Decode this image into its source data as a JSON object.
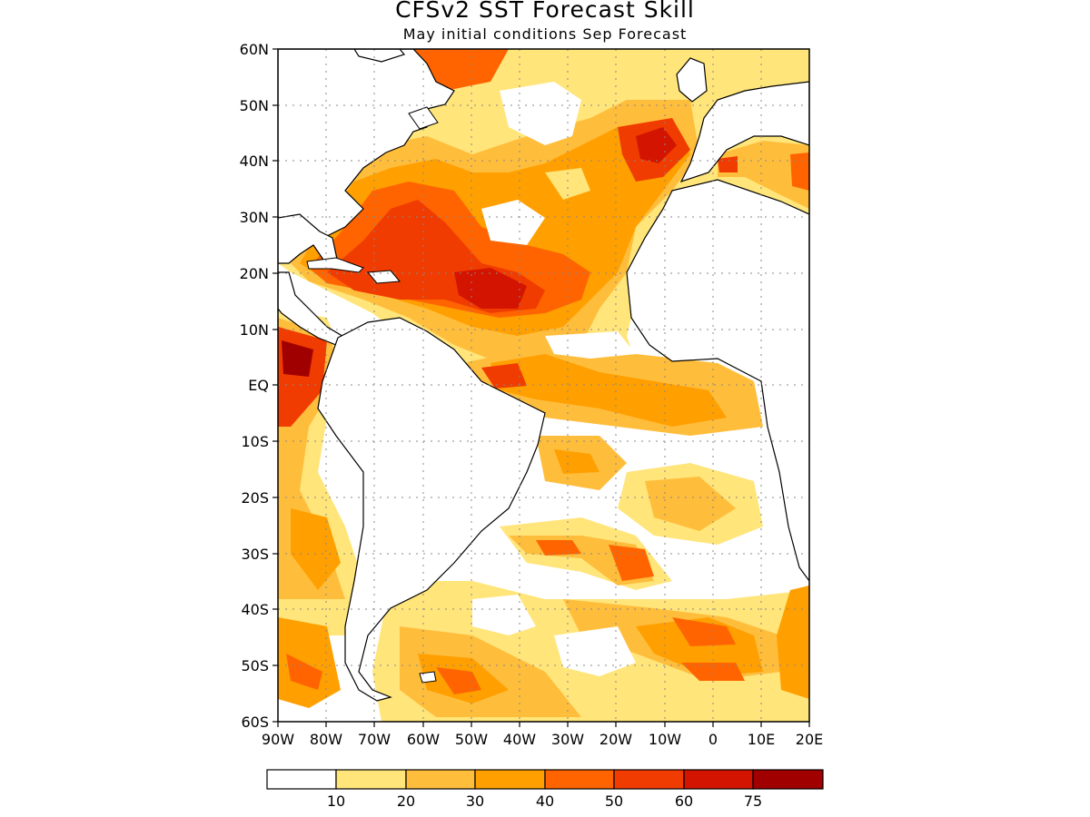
{
  "header": {
    "title": "CFSv2 SST Forecast Skill",
    "subtitle": "May initial conditions  Sep Forecast"
  },
  "map": {
    "lat_labels": [
      "60N",
      "50N",
      "40N",
      "30N",
      "20N",
      "10N",
      "EQ",
      "10S",
      "20S",
      "30S",
      "40S",
      "50S",
      "60S"
    ],
    "lon_labels": [
      "90W",
      "80W",
      "70W",
      "60W",
      "50W",
      "40W",
      "30W",
      "20W",
      "10W",
      "0",
      "10E",
      "20E"
    ]
  },
  "colorbar": {
    "labels": [
      "10",
      "20",
      "30",
      "40",
      "50",
      "60",
      "75"
    ],
    "colors": [
      "#ffffff",
      "#ffe57a",
      "#ffbd3c",
      "#ff9f00",
      "#ff6400",
      "#f03c00",
      "#d21400",
      "#a00000"
    ]
  }
}
